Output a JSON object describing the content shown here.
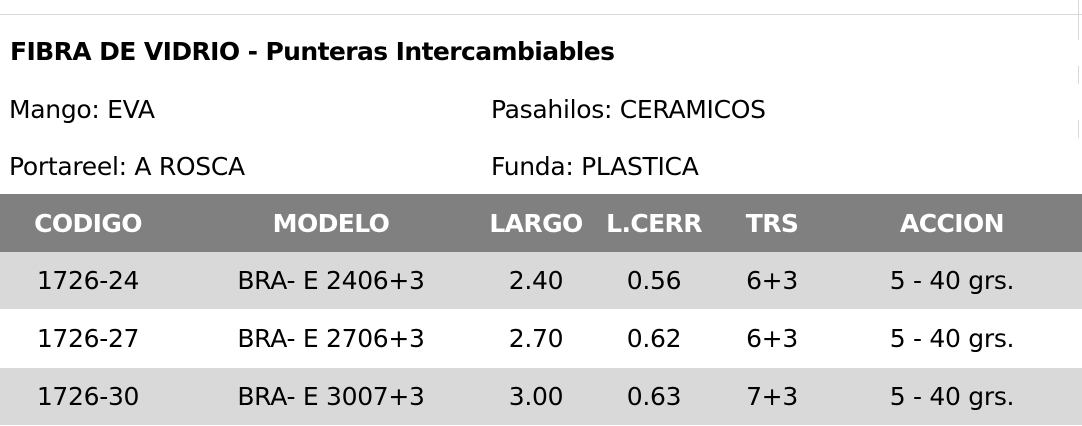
{
  "title": "FIBRA DE VIDRIO - Punteras Intercambiables",
  "specs": {
    "mango": "Mango: EVA",
    "pasahilos": "Pasahilos: CERAMICOS",
    "portareel": "Portareel: A ROSCA",
    "funda": "Funda: PLASTICA"
  },
  "table": {
    "headers": [
      "CODIGO",
      "MODELO",
      "LARGO",
      "L.CERR",
      "TRS",
      "ACCION"
    ],
    "rows": [
      [
        "1726-24",
        "BRA- E 2406+3",
        "2.40",
        "0.56",
        "6+3",
        "5 - 40 grs."
      ],
      [
        "1726-27",
        "BRA- E 2706+3",
        "2.70",
        "0.62",
        "6+3",
        "5 - 40 grs."
      ],
      [
        "1726-30",
        "BRA- E 3007+3",
        "3.00",
        "0.63",
        "7+3",
        "5 - 40 grs."
      ]
    ]
  },
  "colors": {
    "header_bg": "#808080",
    "header_text": "#ffffff",
    "row_shade": "#d9d9d9"
  }
}
